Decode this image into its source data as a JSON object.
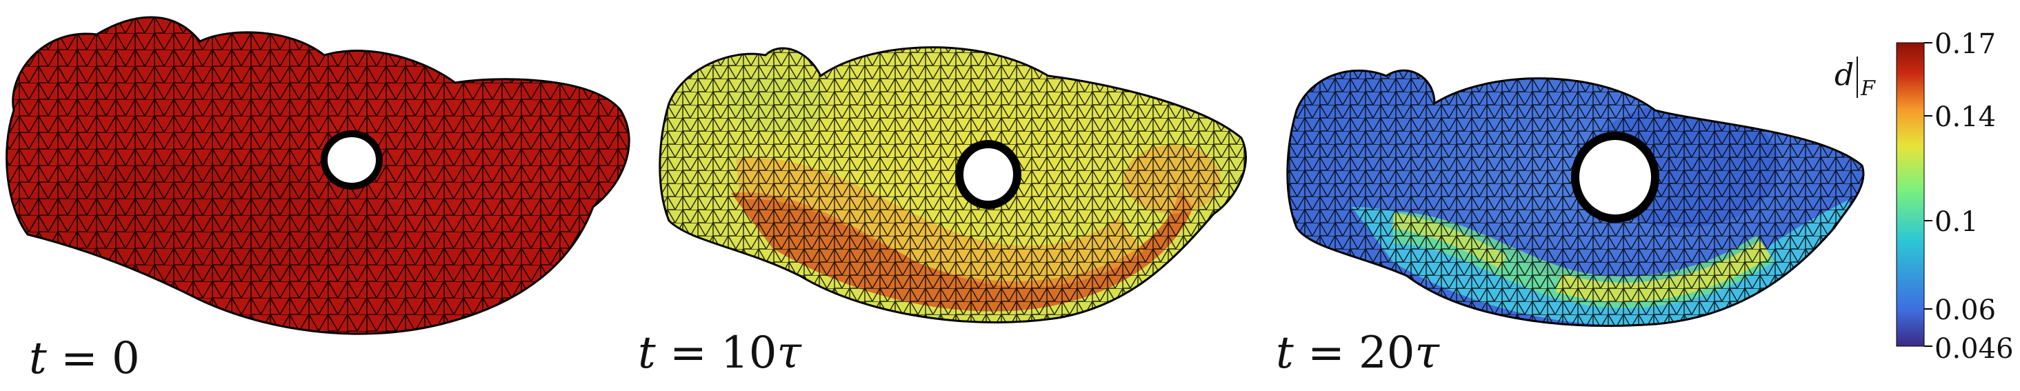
{
  "panels": [
    {
      "name": "t0",
      "label_lhs": "t",
      "label_eq": " = ",
      "label_rhs": "0"
    },
    {
      "name": "t10",
      "label_lhs": "t",
      "label_eq": " = ",
      "label_rhs": "10",
      "label_rhs_greek": "τ"
    },
    {
      "name": "t20",
      "label_lhs": "t",
      "label_eq": " = ",
      "label_rhs": "20",
      "label_rhs_greek": "τ"
    }
  ],
  "colorbar": {
    "label_main": "d",
    "label_sub": "F",
    "ticks": [
      "0.17",
      "0.14",
      "0.1",
      "0.06",
      "0.046"
    ],
    "tick_values": [
      0.17,
      0.14,
      0.1,
      0.06,
      0.046
    ],
    "min": 0.046,
    "max": 0.17,
    "colors": [
      "#3b2a84",
      "#3e6ee0",
      "#2cc7d6",
      "#7ff07a",
      "#e6e43a",
      "#f59a2b",
      "#c92a10",
      "#8c1207"
    ]
  },
  "mesh_colors": {
    "t0": "#b5140e",
    "t10": [
      "#e8e445",
      "#d6e34a",
      "#f1a335",
      "#d65a20",
      "#f0c640"
    ],
    "t20": [
      "#4f7fe0",
      "#3c66d6",
      "#45c6e6",
      "#6fe08f",
      "#d8e24a"
    ]
  }
}
